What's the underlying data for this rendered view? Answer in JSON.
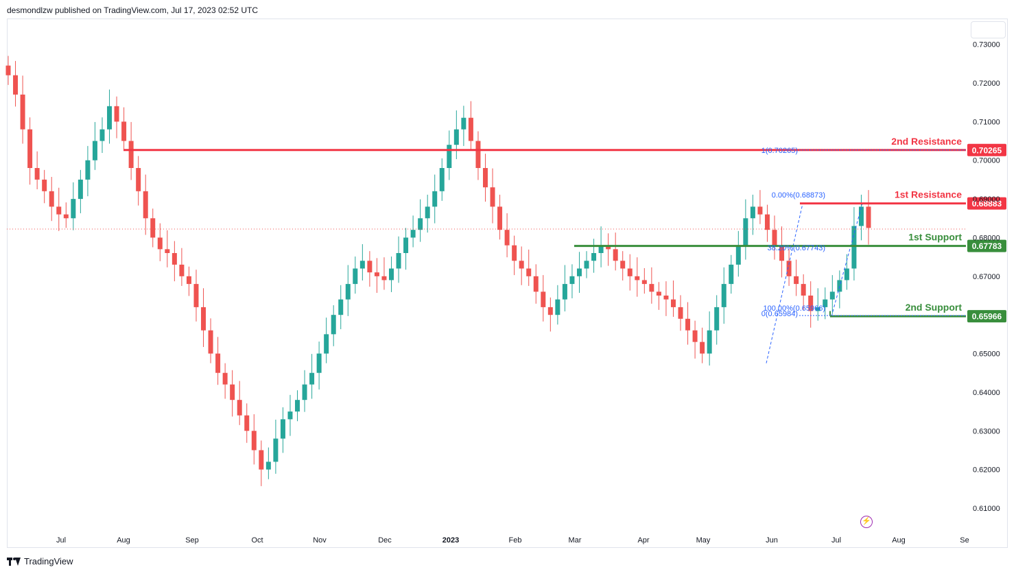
{
  "header": {
    "publisher_line": "desmondlzw published on TradingView.com, Jul 17, 2023 02:52 UTC"
  },
  "footer": {
    "brand": "TradingView"
  },
  "icons": {
    "alert": "lightning-icon",
    "logo": "tradingview-logo-icon"
  },
  "colors": {
    "up": "#26a69a",
    "down": "#ef5350",
    "resistance": "#f23645",
    "support": "#388e3c",
    "fib": "#2962ff"
  },
  "chart_data": {
    "type": "candlestick",
    "symbol": "",
    "y_axis": {
      "ticks": [
        "0.73000",
        "0.72000",
        "0.71000",
        "0.70000",
        "0.69000",
        "0.68000",
        "0.67000",
        "0.65000",
        "0.64000",
        "0.63000",
        "0.62000",
        "0.61000"
      ],
      "tick_values": [
        0.73,
        0.72,
        0.71,
        0.7,
        0.69,
        0.68,
        0.67,
        0.65,
        0.64,
        0.63,
        0.62,
        0.61
      ],
      "range": [
        0.6045,
        0.7365
      ]
    },
    "x_axis": {
      "labels": [
        "Jul",
        "Aug",
        "Sep",
        "Oct",
        "Nov",
        "Dec",
        "2023",
        "Feb",
        "Mar",
        "Apr",
        "May",
        "Jun",
        "Jul",
        "Aug",
        "Se"
      ]
    },
    "levels": [
      {
        "name": "2nd Resistance",
        "value": 0.70265,
        "label": "0.70265",
        "color": "#f23645"
      },
      {
        "name": "1st Resistance",
        "value": 0.68883,
        "label": "0.68883",
        "color": "#f23645"
      },
      {
        "name": "1st Support",
        "value": 0.67783,
        "label": "0.67783",
        "color": "#388e3c"
      },
      {
        "name": "2nd Support",
        "value": 0.65966,
        "label": "0.65966",
        "color": "#388e3c"
      }
    ],
    "fib_labels": [
      "1(0.70265)",
      "0.00%(0.68873)",
      "38.20%(0.67743)",
      "100.00%(0.65966)",
      "0(0.65984)"
    ],
    "current_price": 0.6822,
    "closes": [
      0.722,
      0.717,
      0.708,
      0.698,
      0.695,
      0.692,
      0.688,
      0.686,
      0.685,
      0.69,
      0.695,
      0.7,
      0.705,
      0.708,
      0.714,
      0.71,
      0.705,
      0.698,
      0.692,
      0.685,
      0.68,
      0.677,
      0.676,
      0.673,
      0.67,
      0.668,
      0.662,
      0.656,
      0.65,
      0.645,
      0.642,
      0.638,
      0.634,
      0.63,
      0.625,
      0.62,
      0.622,
      0.628,
      0.633,
      0.635,
      0.638,
      0.642,
      0.645,
      0.65,
      0.655,
      0.66,
      0.664,
      0.668,
      0.672,
      0.674,
      0.671,
      0.67,
      0.669,
      0.672,
      0.676,
      0.68,
      0.682,
      0.685,
      0.688,
      0.692,
      0.698,
      0.704,
      0.708,
      0.711,
      0.705,
      0.698,
      0.693,
      0.688,
      0.682,
      0.678,
      0.674,
      0.672,
      0.67,
      0.666,
      0.662,
      0.66,
      0.664,
      0.668,
      0.67,
      0.672,
      0.674,
      0.676,
      0.678,
      0.677,
      0.674,
      0.672,
      0.67,
      0.669,
      0.668,
      0.666,
      0.665,
      0.664,
      0.662,
      0.659,
      0.656,
      0.653,
      0.65,
      0.656,
      0.662,
      0.668,
      0.673,
      0.678,
      0.685,
      0.688,
      0.686,
      0.682,
      0.678,
      0.674,
      0.67,
      0.668,
      0.665,
      0.661,
      0.662,
      0.664,
      0.666,
      0.669,
      0.672,
      0.683,
      0.688,
      0.6825
    ]
  }
}
